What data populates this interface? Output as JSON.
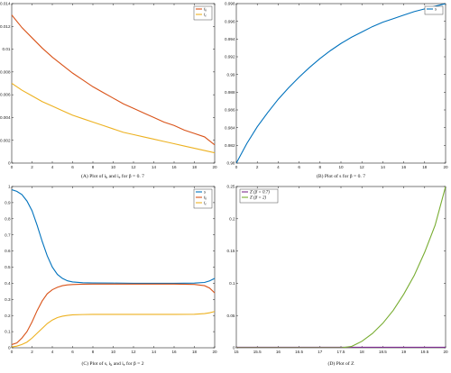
{
  "figure": {
    "background": "#ffffff",
    "axis_color": "#222222"
  },
  "chart_data": [
    {
      "id": "A",
      "type": "line",
      "caption": "(A)  Plot of i",
      "caption_parts": [
        "(A)  Plot of i",
        "k",
        " and i",
        "e",
        " for β  =  0. 7"
      ],
      "xlim": [
        0,
        20
      ],
      "ylim": [
        0,
        0.014
      ],
      "xticks": [
        "0",
        "2",
        "4",
        "6",
        "8",
        "10",
        "12",
        "14",
        "16",
        "18",
        "20"
      ],
      "yticks": [
        "0",
        "0.002",
        "0.004",
        "0.006",
        "0.008",
        "0.01",
        "0.012",
        "0.014"
      ],
      "xtick_values": [
        0,
        2,
        4,
        6,
        8,
        10,
        12,
        14,
        16,
        18,
        20
      ],
      "ytick_values": [
        0,
        0.002,
        0.004,
        0.006,
        0.008,
        0.01,
        0.012,
        0.014
      ],
      "legend_position": "top-right",
      "series": [
        {
          "name": "i",
          "sub": "k",
          "color": "#d95319",
          "x": [
            0,
            1,
            2,
            3,
            4,
            5,
            6,
            7,
            8,
            9,
            10,
            11,
            12,
            13,
            14,
            15,
            16,
            17,
            18,
            19,
            20
          ],
          "y": [
            0.013,
            0.0119,
            0.011,
            0.0101,
            0.0093,
            0.0086,
            0.0079,
            0.0073,
            0.0067,
            0.0062,
            0.0057,
            0.0052,
            0.0048,
            0.0044,
            0.004,
            0.0036,
            0.0033,
            0.0029,
            0.0026,
            0.0023,
            0.0016
          ]
        },
        {
          "name": "i",
          "sub": "e",
          "color": "#edb120",
          "x": [
            0,
            1,
            2,
            3,
            4,
            5,
            6,
            7,
            8,
            9,
            10,
            11,
            12,
            13,
            14,
            15,
            16,
            17,
            18,
            19,
            20
          ],
          "y": [
            0.007,
            0.0064,
            0.0059,
            0.0054,
            0.005,
            0.0046,
            0.0042,
            0.0039,
            0.0036,
            0.0033,
            0.003,
            0.0027,
            0.0025,
            0.0023,
            0.0021,
            0.0019,
            0.0017,
            0.0015,
            0.0013,
            0.0011,
            0.0009
          ]
        }
      ]
    },
    {
      "id": "B",
      "type": "line",
      "caption_parts": [
        "(B)  Plot of  s for β  =  0. 7"
      ],
      "xlim": [
        0,
        20
      ],
      "ylim": [
        0.98,
        0.998
      ],
      "xticks": [
        "0",
        "2",
        "4",
        "6",
        "8",
        "10",
        "12",
        "14",
        "16",
        "18",
        "20"
      ],
      "yticks": [
        "0.98",
        "0.982",
        "0.984",
        "0.986",
        "0.988",
        "0.99",
        "0.992",
        "0.994",
        "0.996",
        "0.998"
      ],
      "xtick_values": [
        0,
        2,
        4,
        6,
        8,
        10,
        12,
        14,
        16,
        18,
        20
      ],
      "ytick_values": [
        0.98,
        0.982,
        0.984,
        0.986,
        0.988,
        0.99,
        0.992,
        0.994,
        0.996,
        0.998
      ],
      "legend_position": "top-right",
      "series": [
        {
          "name": "s",
          "sub": "",
          "color": "#0072bd",
          "x": [
            0,
            1,
            2,
            3,
            4,
            5,
            6,
            7,
            8,
            9,
            10,
            11,
            12,
            13,
            14,
            15,
            16,
            17,
            18,
            19,
            20
          ],
          "y": [
            0.98,
            0.9822,
            0.9841,
            0.9857,
            0.9872,
            0.9885,
            0.9897,
            0.9908,
            0.9918,
            0.9927,
            0.9935,
            0.9942,
            0.9948,
            0.9954,
            0.9959,
            0.9963,
            0.9967,
            0.9971,
            0.9974,
            0.9977,
            0.998
          ]
        }
      ]
    },
    {
      "id": "C",
      "type": "line",
      "caption_parts": [
        "(C)  Plot of  s,  i",
        "k",
        " and i",
        "e",
        " for β  =  2"
      ],
      "xlim": [
        0,
        20
      ],
      "ylim": [
        0,
        1
      ],
      "xticks": [
        "0",
        "2",
        "4",
        "6",
        "8",
        "10",
        "12",
        "14",
        "16",
        "18",
        "20"
      ],
      "yticks": [
        "0",
        "0.1",
        "0.2",
        "0.3",
        "0.4",
        "0.5",
        "0.6",
        "0.7",
        "0.8",
        "0.9",
        "1"
      ],
      "xtick_values": [
        0,
        2,
        4,
        6,
        8,
        10,
        12,
        14,
        16,
        18,
        20
      ],
      "ytick_values": [
        0,
        0.1,
        0.2,
        0.3,
        0.4,
        0.5,
        0.6,
        0.7,
        0.8,
        0.9,
        1
      ],
      "legend_position": "top-right",
      "series": [
        {
          "name": "s",
          "sub": "",
          "color": "#0072bd",
          "x": [
            0,
            0.5,
            1,
            1.5,
            2,
            2.5,
            3,
            3.5,
            4,
            4.5,
            5,
            5.5,
            6,
            7,
            8,
            10,
            12,
            14,
            16,
            18,
            19,
            19.5,
            20
          ],
          "y": [
            0.98,
            0.97,
            0.95,
            0.91,
            0.85,
            0.76,
            0.66,
            0.57,
            0.5,
            0.455,
            0.43,
            0.415,
            0.408,
            0.403,
            0.402,
            0.401,
            0.4,
            0.4,
            0.4,
            0.401,
            0.405,
            0.415,
            0.43
          ]
        },
        {
          "name": "i",
          "sub": "k",
          "color": "#d95319",
          "x": [
            0,
            0.5,
            1,
            1.5,
            2,
            2.5,
            3,
            3.5,
            4,
            4.5,
            5,
            5.5,
            6,
            7,
            8,
            10,
            12,
            14,
            16,
            18,
            19,
            19.5,
            20
          ],
          "y": [
            0.02,
            0.03,
            0.06,
            0.1,
            0.16,
            0.23,
            0.29,
            0.335,
            0.36,
            0.375,
            0.385,
            0.39,
            0.392,
            0.394,
            0.395,
            0.395,
            0.395,
            0.395,
            0.395,
            0.393,
            0.385,
            0.37,
            0.34
          ]
        },
        {
          "name": "i",
          "sub": "e",
          "color": "#edb120",
          "x": [
            0,
            0.5,
            1,
            1.5,
            2,
            2.5,
            3,
            3.5,
            4,
            4.5,
            5,
            5.5,
            6,
            7,
            8,
            10,
            12,
            14,
            16,
            18,
            19,
            19.5,
            20
          ],
          "y": [
            0.005,
            0.01,
            0.02,
            0.035,
            0.06,
            0.09,
            0.12,
            0.15,
            0.172,
            0.187,
            0.196,
            0.201,
            0.204,
            0.206,
            0.207,
            0.207,
            0.207,
            0.207,
            0.207,
            0.208,
            0.212,
            0.217,
            0.225
          ]
        }
      ]
    },
    {
      "id": "D",
      "type": "line",
      "caption_parts": [
        "(D)  Plot of  Z"
      ],
      "xlim": [
        15,
        20
      ],
      "ylim": [
        0,
        0.25
      ],
      "xticks": [
        "15",
        "15.5",
        "16",
        "16.5",
        "17",
        "17.5",
        "18",
        "18.5",
        "19",
        "19.5",
        "20"
      ],
      "yticks": [
        "0",
        "0.05",
        "0.1",
        "0.15",
        "0.2",
        "0.25"
      ],
      "xtick_values": [
        15,
        15.5,
        16,
        16.5,
        17,
        17.5,
        18,
        18.5,
        19,
        19.5,
        20
      ],
      "ytick_values": [
        0,
        0.05,
        0.1,
        0.15,
        0.2,
        0.25
      ],
      "legend_position": "top-left",
      "series": [
        {
          "name": "Z  (β = 0.7)",
          "sub": "",
          "color": "#7e2f8e",
          "x": [
            15,
            16,
            17,
            18,
            19,
            20
          ],
          "y": [
            0.0008,
            0.0008,
            0.0008,
            0.0008,
            0.0008,
            0.0008
          ]
        },
        {
          "name": "Z  (β = 2)",
          "sub": "",
          "color": "#77ac30",
          "x": [
            15,
            16,
            17,
            17.5,
            17.75,
            18,
            18.25,
            18.5,
            18.75,
            19,
            19.25,
            19.5,
            19.75,
            20
          ],
          "y": [
            0,
            0,
            0,
            0,
            0.002,
            0.01,
            0.022,
            0.038,
            0.058,
            0.083,
            0.112,
            0.148,
            0.19,
            0.25
          ]
        }
      ]
    }
  ]
}
